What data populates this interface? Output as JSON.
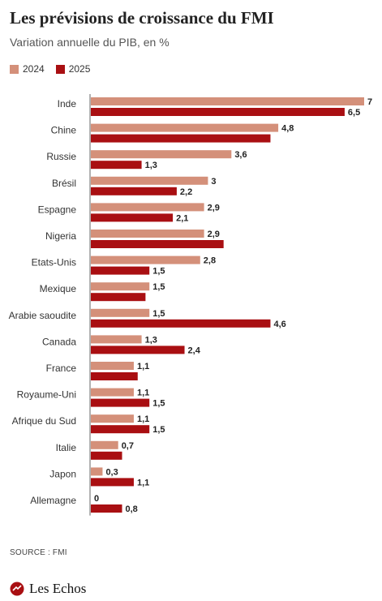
{
  "title": "Les prévisions de croissance du FMI",
  "subtitle": "Variation annuelle du PIB, en %",
  "source": "SOURCE : FMI",
  "brand": "Les Echos",
  "colors": {
    "series2024": "#d4907a",
    "series2025": "#a90f12",
    "axis": "#666666"
  },
  "chart_data": {
    "type": "bar",
    "orientation": "horizontal",
    "categories": [
      "Inde",
      "Chine",
      "Russie",
      "Brésil",
      "Espagne",
      "Nigeria",
      "Etats-Unis",
      "Mexique",
      "Arabie saoudite",
      "Canada",
      "France",
      "Royaume-Uni",
      "Afrique du Sud",
      "Italie",
      "Japon",
      "Allemagne"
    ],
    "series": [
      {
        "name": "2024",
        "values": [
          7,
          4.8,
          3.6,
          3,
          2.9,
          2.9,
          2.8,
          1.5,
          1.5,
          1.3,
          1.1,
          1.1,
          1.1,
          0.7,
          0.3,
          0
        ],
        "labels": [
          "7",
          "4,8",
          "3,6",
          "3",
          "2,9",
          "2,9",
          "2,8",
          "1,5",
          "1,5",
          "1,3",
          "1,1",
          "1,1",
          "1,1",
          "0,7",
          "0,3",
          "0"
        ]
      },
      {
        "name": "2025",
        "values": [
          6.5,
          4.6,
          1.3,
          2.2,
          2.1,
          3.4,
          1.5,
          1.4,
          4.6,
          2.4,
          1.2,
          1.5,
          1.5,
          0.8,
          1.1,
          0.8
        ],
        "labels": [
          "6,5",
          "",
          "1,3",
          "2,2",
          "2,1",
          "",
          "1,5",
          "",
          "4,6",
          "2,4",
          "",
          "1,5",
          "1,5",
          "",
          "1,1",
          "0,8"
        ]
      }
    ],
    "xlim": [
      0,
      7
    ],
    "grid": false,
    "legend": "top-left"
  }
}
